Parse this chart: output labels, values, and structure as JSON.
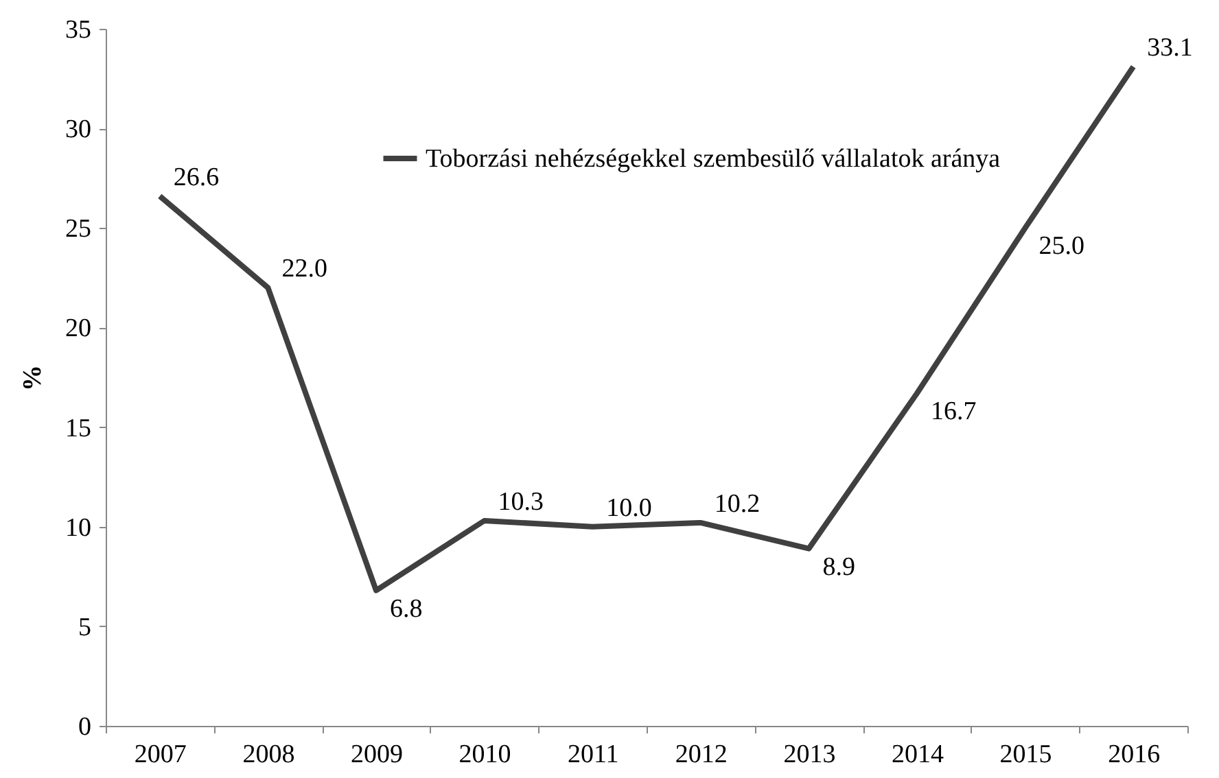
{
  "chart_data": {
    "type": "line",
    "ylabel": "%",
    "categories": [
      "2007",
      "2008",
      "2009",
      "2010",
      "2011",
      "2012",
      "2013",
      "2014",
      "2015",
      "2016"
    ],
    "series": [
      {
        "name": "Toborzási nehézségekkel szembesülő vállalatok aránya",
        "color": "#404040",
        "values": [
          26.6,
          22.0,
          6.8,
          10.3,
          10.0,
          10.2,
          8.9,
          16.7,
          25.0,
          33.1
        ]
      }
    ],
    "value_labels": [
      "26.6",
      "22.0",
      "6.8",
      "10.3",
      "10.0",
      "10.2",
      "8.9",
      "16.7",
      "25.0",
      "33.1"
    ],
    "ylim": [
      0,
      35
    ],
    "yticks": [
      0,
      5,
      10,
      15,
      20,
      25,
      30,
      35
    ],
    "grid": false,
    "legend": "top",
    "marker": "none",
    "line_style": "solid"
  }
}
